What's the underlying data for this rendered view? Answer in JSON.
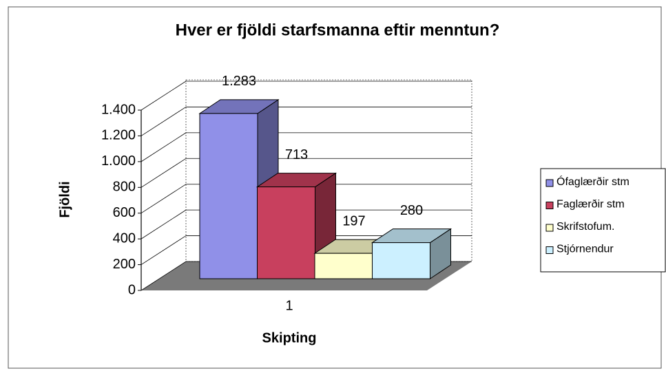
{
  "chart_data": {
    "type": "bar3d",
    "title": "Hver er fjöldi starfsmanna eftir menntun?",
    "x_label": "Skipting",
    "y_label": "Fjöldi",
    "categories": [
      "1"
    ],
    "series": [
      {
        "name": "Ófaglærðir stm",
        "color": "#9090e8",
        "values": [
          1283
        ],
        "value_labels": [
          "1.283"
        ]
      },
      {
        "name": "Faglærðir stm",
        "color": "#c8405e",
        "values": [
          713
        ]
      },
      {
        "name": "Skrifstofum.",
        "color": "#ffffcc",
        "values": [
          197
        ]
      },
      {
        "name": "Stjórnendur",
        "color": "#ccf0ff",
        "values": [
          280
        ]
      }
    ],
    "ylim": [
      0,
      1400
    ],
    "yticks": [
      0,
      200,
      400,
      600,
      800,
      {
        "value": 1000,
        "label": "1.000"
      },
      {
        "value": 1200,
        "label": "1.200"
      },
      {
        "value": 1400,
        "label": "1.400"
      }
    ],
    "grid": true,
    "legend": "right"
  }
}
